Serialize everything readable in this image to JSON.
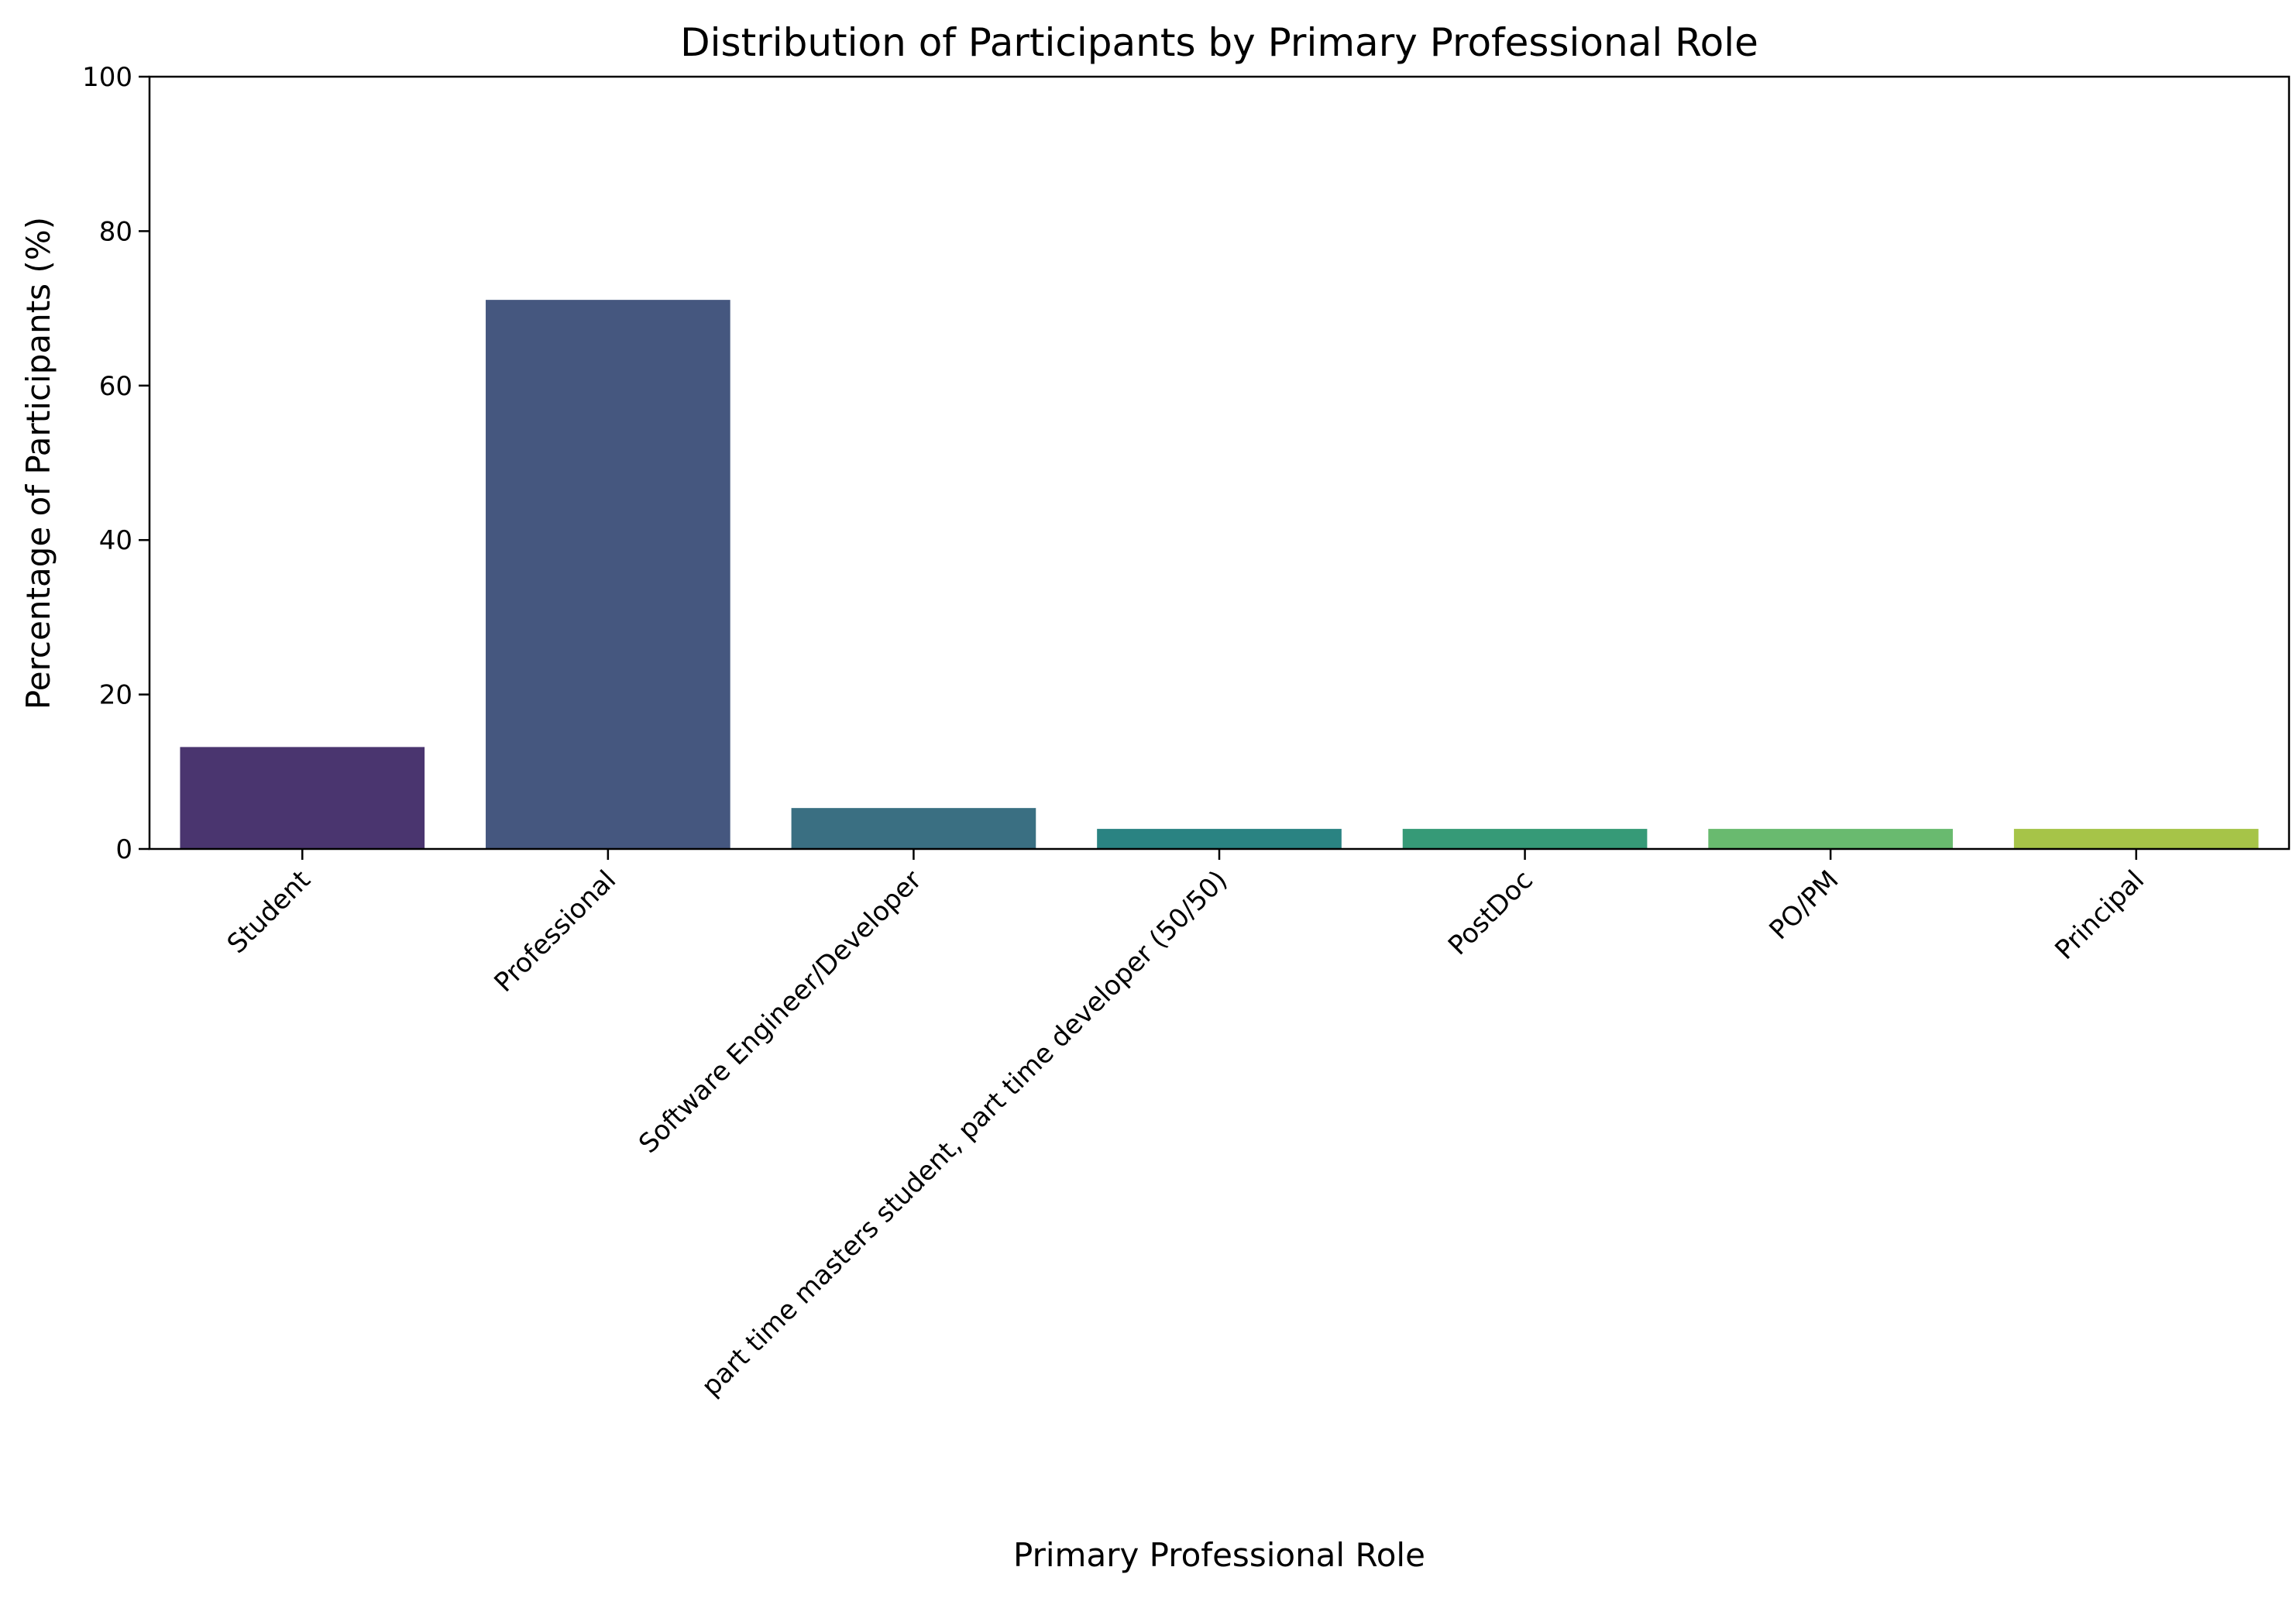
{
  "chart_data": {
    "type": "bar",
    "title": "Distribution of Participants by Primary Professional Role",
    "xlabel": "Primary Professional Role",
    "ylabel": "Percentage of Participants (%)",
    "ylim": [
      0,
      100
    ],
    "yticks": [
      0,
      20,
      40,
      60,
      80,
      100
    ],
    "categories": [
      "Student",
      "Professional",
      "Software Engineer/Developer",
      "part time masters student, part time developer (50/50)",
      "PostDoc",
      "PO/PM",
      "Principal"
    ],
    "values": [
      13.2,
      71.1,
      5.3,
      2.6,
      2.6,
      2.6,
      2.6
    ],
    "colors": [
      "#4a356f",
      "#45577f",
      "#3a6f82",
      "#2a8382",
      "#369a77",
      "#69ba6f",
      "#a6c448"
    ],
    "grid": false,
    "legend": "none"
  }
}
